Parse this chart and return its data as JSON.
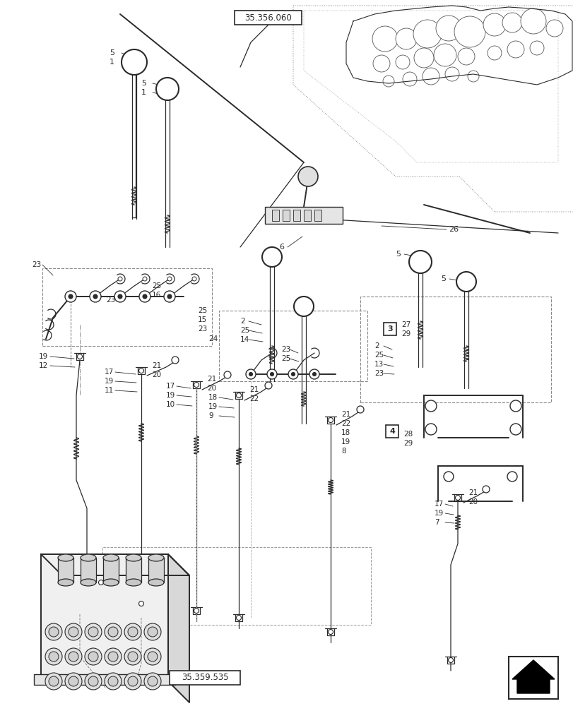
{
  "bg_color": "#ffffff",
  "line_color": "#2a2a2a",
  "ref_top": "35.356.060",
  "ref_bottom": "35.359.535",
  "figsize": [
    8.12,
    10.0
  ],
  "dpi": 100,
  "xlim": [
    0,
    812
  ],
  "ylim": [
    0,
    1000
  ]
}
